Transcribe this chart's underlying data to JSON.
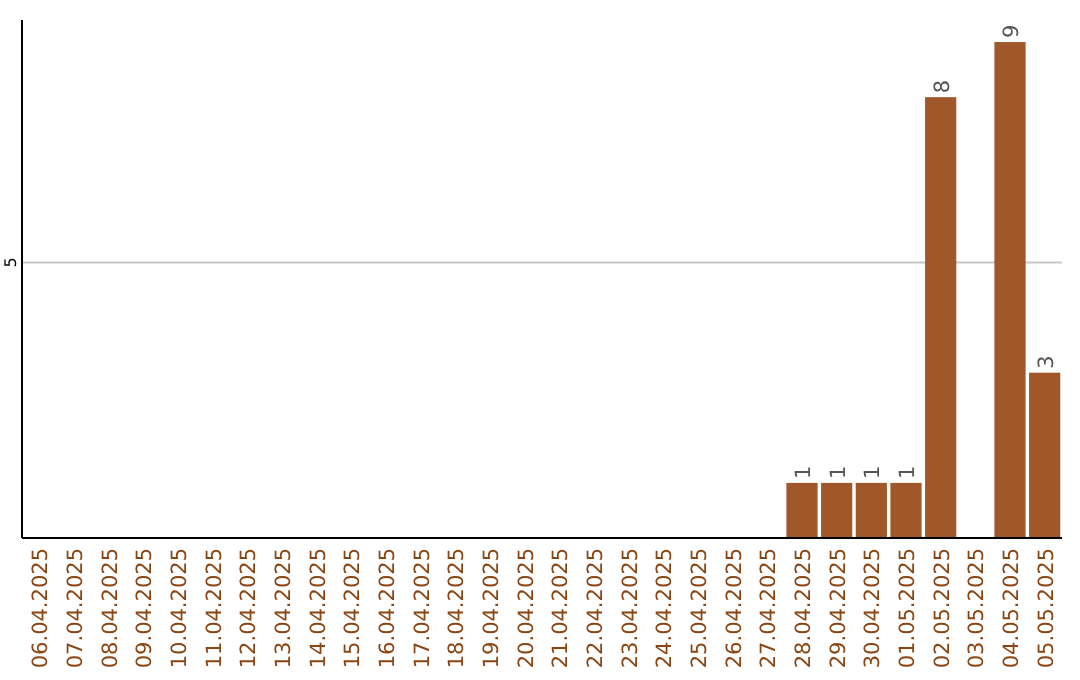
{
  "chart_data": {
    "type": "bar",
    "categories": [
      "06.04.2025",
      "07.04.2025",
      "08.04.2025",
      "09.04.2025",
      "10.04.2025",
      "11.04.2025",
      "12.04.2025",
      "13.04.2025",
      "14.04.2025",
      "15.04.2025",
      "16.04.2025",
      "17.04.2025",
      "18.04.2025",
      "19.04.2025",
      "20.04.2025",
      "21.04.2025",
      "22.04.2025",
      "23.04.2025",
      "24.04.2025",
      "25.04.2025",
      "26.04.2025",
      "27.04.2025",
      "28.04.2025",
      "29.04.2025",
      "30.04.2025",
      "01.05.2025",
      "02.05.2025",
      "03.05.2025",
      "04.05.2025",
      "05.05.2025"
    ],
    "values": [
      null,
      null,
      null,
      null,
      null,
      null,
      null,
      null,
      null,
      null,
      null,
      null,
      null,
      null,
      null,
      null,
      null,
      null,
      null,
      null,
      null,
      null,
      1,
      1,
      1,
      1,
      8,
      null,
      9,
      3
    ],
    "data_labels": true,
    "color": "#a0582b",
    "ylim": [
      0,
      9.4
    ],
    "yticks": [
      5
    ],
    "grid": "y"
  }
}
